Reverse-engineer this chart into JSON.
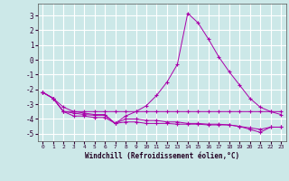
{
  "xlabel": "Windchill (Refroidissement éolien,°C)",
  "background_color": "#cce8e8",
  "grid_color": "#ffffff",
  "line_color": "#aa00aa",
  "x": [
    0,
    1,
    2,
    3,
    4,
    5,
    6,
    7,
    8,
    9,
    10,
    11,
    12,
    13,
    14,
    15,
    16,
    17,
    18,
    19,
    20,
    21,
    22,
    23
  ],
  "line1": [
    -2.2,
    -2.6,
    -3.5,
    -3.5,
    -3.5,
    -3.5,
    -3.5,
    -3.5,
    -3.5,
    -3.5,
    -3.5,
    -3.5,
    -3.5,
    -3.5,
    -3.5,
    -3.5,
    -3.5,
    -3.5,
    -3.5,
    -3.5,
    -3.5,
    -3.5,
    -3.5,
    -3.5
  ],
  "line2": [
    -2.2,
    -2.6,
    -3.5,
    -3.8,
    -3.8,
    -3.9,
    -3.9,
    -4.3,
    -4.2,
    -4.2,
    -4.3,
    -4.3,
    -4.3,
    -4.35,
    -4.35,
    -4.35,
    -4.4,
    -4.4,
    -4.4,
    -4.5,
    -4.6,
    -4.7,
    -4.55,
    -4.55
  ],
  "line3": [
    -2.2,
    -2.6,
    -3.5,
    -3.6,
    -3.7,
    -3.75,
    -3.75,
    -4.3,
    -4.0,
    -4.0,
    -4.1,
    -4.1,
    -4.2,
    -4.2,
    -4.3,
    -4.3,
    -4.35,
    -4.35,
    -4.4,
    -4.5,
    -4.7,
    -4.9,
    -4.55,
    -4.55
  ],
  "line4": [
    -2.2,
    -2.6,
    -3.2,
    -3.5,
    -3.6,
    -3.7,
    -3.7,
    -4.3,
    -3.8,
    -3.5,
    -3.1,
    -2.4,
    -1.5,
    -0.3,
    3.15,
    2.5,
    1.4,
    0.2,
    -0.8,
    -1.7,
    -2.6,
    -3.2,
    -3.5,
    -3.7
  ],
  "ylim": [
    -5.5,
    3.8
  ],
  "xlim": [
    -0.5,
    23.5
  ],
  "yticks": [
    -5,
    -4,
    -3,
    -2,
    -1,
    0,
    1,
    2,
    3
  ],
  "xticks": [
    0,
    1,
    2,
    3,
    4,
    5,
    6,
    7,
    8,
    9,
    10,
    11,
    12,
    13,
    14,
    15,
    16,
    17,
    18,
    19,
    20,
    21,
    22,
    23
  ]
}
